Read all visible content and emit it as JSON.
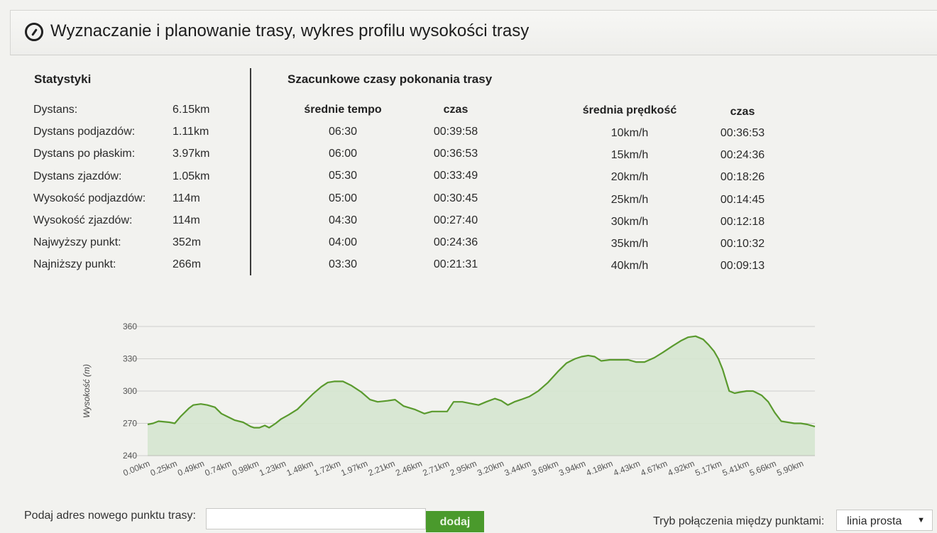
{
  "header": {
    "icon": "compass-icon",
    "title": "Wyznaczanie i planowanie trasy, wykres profilu wysokości trasy"
  },
  "stats": {
    "heading": "Statystyki",
    "rows": [
      {
        "label": "Dystans:",
        "value": "6.15km"
      },
      {
        "label": "Dystans podjazdów:",
        "value": "1.11km"
      },
      {
        "label": "Dystans po płaskim:",
        "value": "3.97km"
      },
      {
        "label": "Dystans zjazdów:",
        "value": "1.05km"
      },
      {
        "label": "Wysokość podjazdów:",
        "value": "114m"
      },
      {
        "label": "Wysokość zjazdów:",
        "value": "114m"
      },
      {
        "label": "Najwyższy punkt:",
        "value": "352m"
      },
      {
        "label": "Najniższy punkt:",
        "value": "266m"
      }
    ]
  },
  "times": {
    "heading": "Szacunkowe czasy pokonania trasy",
    "pace_header": "średnie tempo",
    "pace_time_header": "czas",
    "speed_header": "średnia prędkość",
    "speed_time_header": "czas",
    "pace_rows": [
      {
        "pace": "06:30",
        "time": "00:39:58"
      },
      {
        "pace": "06:00",
        "time": "00:36:53"
      },
      {
        "pace": "05:30",
        "time": "00:33:49"
      },
      {
        "pace": "05:00",
        "time": "00:30:45"
      },
      {
        "pace": "04:30",
        "time": "00:27:40"
      },
      {
        "pace": "04:00",
        "time": "00:24:36"
      },
      {
        "pace": "03:30",
        "time": "00:21:31"
      }
    ],
    "speed_rows": [
      {
        "speed": "10km/h",
        "time": "00:36:53"
      },
      {
        "speed": "15km/h",
        "time": "00:24:36"
      },
      {
        "speed": "20km/h",
        "time": "00:18:26"
      },
      {
        "speed": "25km/h",
        "time": "00:14:45"
      },
      {
        "speed": "30km/h",
        "time": "00:12:18"
      },
      {
        "speed": "35km/h",
        "time": "00:10:32"
      },
      {
        "speed": "40km/h",
        "time": "00:09:13"
      }
    ]
  },
  "chart_data": {
    "type": "area",
    "ylabel": "Wysokość (m)",
    "xlabel": "",
    "ylim": [
      240,
      360
    ],
    "yticks": [
      240,
      270,
      300,
      330,
      360
    ],
    "xlim": [
      0,
      6.15
    ],
    "xticks": [
      "0.00km",
      "0.25km",
      "0.49km",
      "0.74km",
      "0.98km",
      "1.23km",
      "1.48km",
      "1.72km",
      "1.97km",
      "2.21km",
      "2.46km",
      "2.71km",
      "2.95km",
      "3.20km",
      "3.44km",
      "3.69km",
      "3.94km",
      "4.18km",
      "4.43km",
      "4.67km",
      "4.92km",
      "5.17km",
      "5.41km",
      "5.66km",
      "5.90km"
    ],
    "grid": true,
    "line_color": "#5a9a2e",
    "fill_color": "#d5e6cf",
    "series": [
      {
        "x": [
          0.0,
          0.05,
          0.1,
          0.2,
          0.25,
          0.3,
          0.38,
          0.42,
          0.49,
          0.55,
          0.62,
          0.68,
          0.74,
          0.8,
          0.88,
          0.95,
          0.98,
          1.03,
          1.08,
          1.12,
          1.18,
          1.23,
          1.3,
          1.38,
          1.45,
          1.52,
          1.6,
          1.66,
          1.72,
          1.8,
          1.88,
          1.97,
          2.05,
          2.12,
          2.21,
          2.28,
          2.36,
          2.46,
          2.55,
          2.62,
          2.71,
          2.76,
          2.82,
          2.9,
          2.95,
          3.0,
          3.05,
          3.12,
          3.2,
          3.26,
          3.32,
          3.38,
          3.44,
          3.52,
          3.6,
          3.69,
          3.78,
          3.86,
          3.94,
          4.0,
          4.06,
          4.12,
          4.18,
          4.26,
          4.34,
          4.43,
          4.5,
          4.58,
          4.67,
          4.75,
          4.84,
          4.92,
          4.98,
          5.05,
          5.12,
          5.17,
          5.22,
          5.26,
          5.3,
          5.36,
          5.41,
          5.46,
          5.52,
          5.58,
          5.62,
          5.66,
          5.72,
          5.78,
          5.84,
          5.9,
          5.96,
          6.02,
          6.08,
          6.15
        ],
        "y": [
          269,
          270,
          272,
          271,
          270,
          276,
          284,
          287,
          288,
          287,
          285,
          279,
          276,
          273,
          271,
          267,
          266,
          266,
          268,
          266,
          270,
          274,
          278,
          283,
          290,
          297,
          304,
          308,
          309,
          309,
          305,
          299,
          292,
          290,
          291,
          292,
          286,
          283,
          279,
          281,
          281,
          281,
          290,
          290,
          289,
          288,
          287,
          290,
          293,
          291,
          287,
          290,
          292,
          295,
          300,
          308,
          318,
          326,
          330,
          332,
          333,
          332,
          328,
          329,
          329,
          329,
          327,
          327,
          331,
          336,
          342,
          347,
          350,
          351,
          348,
          343,
          337,
          330,
          320,
          300,
          298,
          299,
          300,
          300,
          298,
          296,
          290,
          280,
          272,
          271,
          270,
          270,
          269,
          267
        ]
      }
    ]
  },
  "bottom": {
    "address_label": "Podaj adres nowego punktu trasy:",
    "address_value": "",
    "add_button": "dodaj",
    "mode_label": "Tryb połączenia między punktami:",
    "mode_value": "linia prosta"
  }
}
